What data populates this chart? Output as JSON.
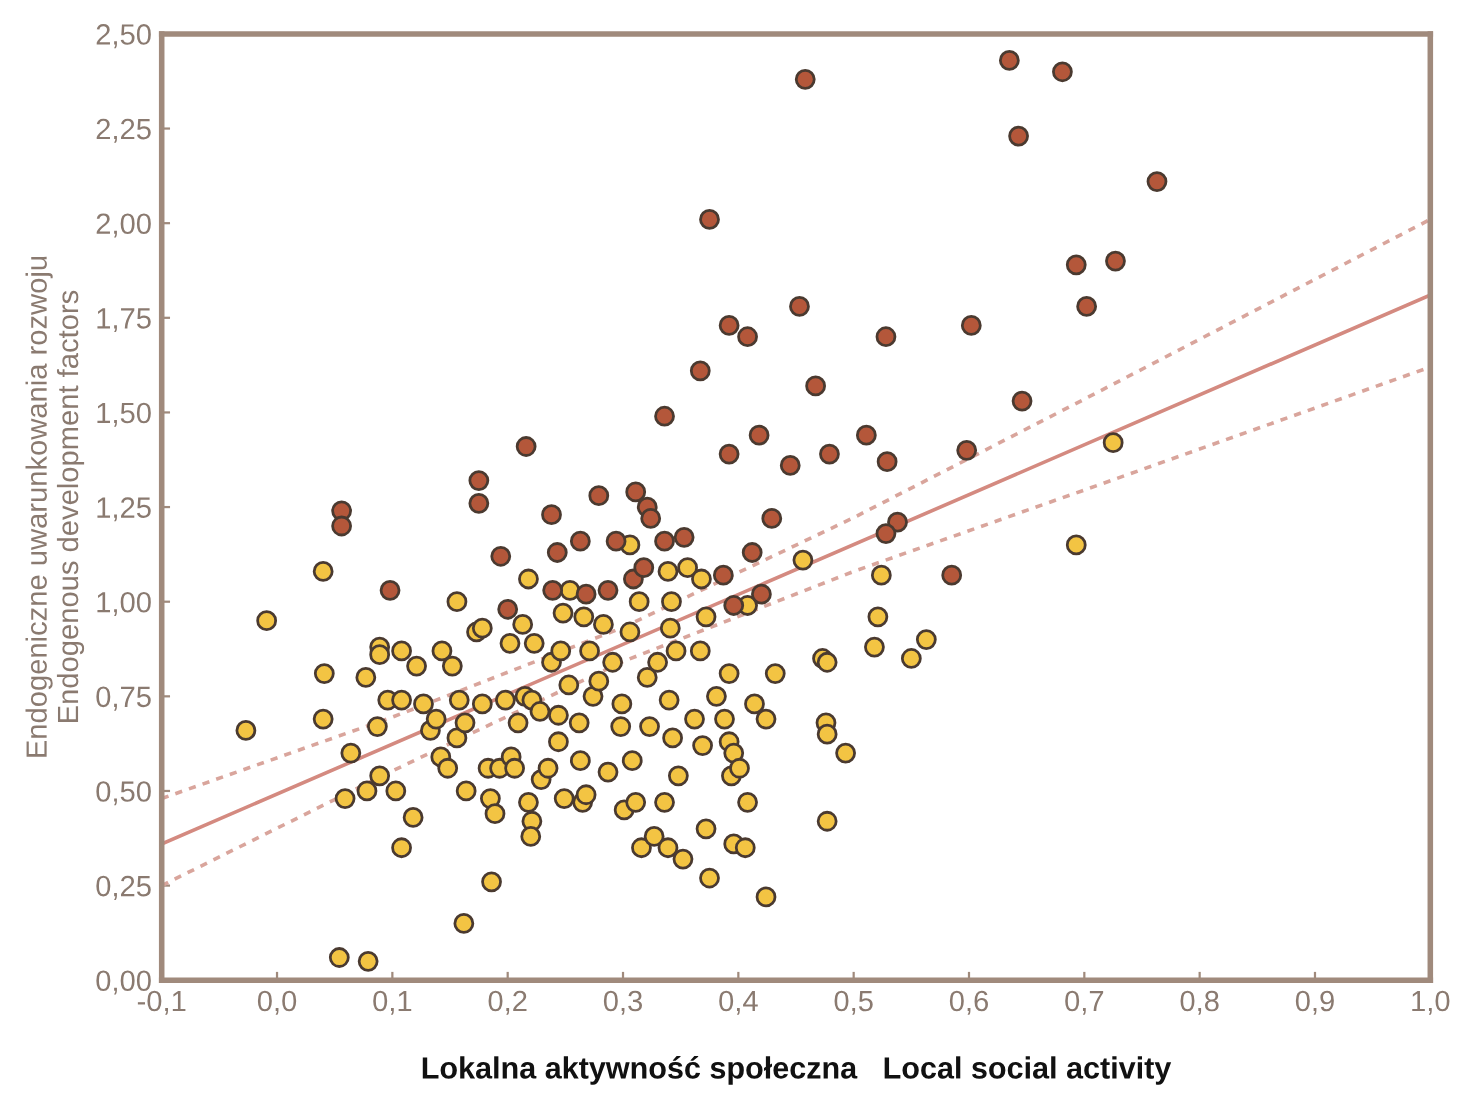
{
  "chart_data": {
    "type": "scatter",
    "xlabel": "Lokalna aktywność społeczna   Local social activity",
    "ylabel": "Endogeniczne uwarunkowania rozwoju\nEndogenous development factors",
    "xlim": [
      -0.1,
      1.0
    ],
    "xticks": [
      {
        "value": -0.1,
        "label": "-0,1"
      },
      {
        "value": 0.0,
        "label": "0,0"
      },
      {
        "value": 0.1,
        "label": "0,1"
      },
      {
        "value": 0.2,
        "label": "0,2"
      },
      {
        "value": 0.3,
        "label": "0,3"
      },
      {
        "value": 0.4,
        "label": "0,4"
      },
      {
        "value": 0.5,
        "label": "0,5"
      },
      {
        "value": 0.6,
        "label": "0,6"
      },
      {
        "value": 0.7,
        "label": "0,7"
      },
      {
        "value": 0.8,
        "label": "0,8"
      },
      {
        "value": 0.9,
        "label": "0,9"
      },
      {
        "value": 1.0,
        "label": "1,0"
      }
    ],
    "ylim": [
      0,
      2.5
    ],
    "yticks": [
      {
        "value": 0,
        "label": "0,00"
      },
      {
        "value": 0.25,
        "label": "0,25"
      },
      {
        "value": 0.5,
        "label": "0,50"
      },
      {
        "value": 0.75,
        "label": "0,75"
      },
      {
        "value": 1.0,
        "label": "1,00"
      },
      {
        "value": 1.25,
        "label": "1,25"
      },
      {
        "value": 1.5,
        "label": "1,50"
      },
      {
        "value": 1.75,
        "label": "1,75"
      },
      {
        "value": 2.0,
        "label": "2,00"
      },
      {
        "value": 2.25,
        "label": "2,25"
      },
      {
        "value": 2.5,
        "label": "2,50"
      }
    ],
    "grid": false,
    "marker": "circle",
    "series": [
      {
        "type": "line",
        "color": "#d9a59c",
        "line_style": "dotted",
        "marker": "none",
        "x": [
          -0.1,
          0.1,
          0.3,
          0.5,
          0.7,
          1.0
        ],
        "values": [
          0.48,
          0.695,
          0.932,
          1.222,
          1.535,
          2.01
        ]
      },
      {
        "type": "line",
        "color": "#d9a59c",
        "line_style": "dotted",
        "marker": "none",
        "x": [
          -0.1,
          0.1,
          0.3,
          0.5,
          0.7,
          1.0
        ],
        "values": [
          0.25,
          0.553,
          0.842,
          1.08,
          1.295,
          1.62
        ]
      },
      {
        "type": "line",
        "color": "#d48a80",
        "line_style": "solid",
        "marker": "none",
        "x": [
          -0.1,
          1.0
        ],
        "values": [
          0.36,
          1.81
        ]
      },
      {
        "type": "scatter",
        "color": "#f3c443",
        "x": [
          -0.027,
          -0.009,
          0.04,
          0.041,
          0.04,
          0.064,
          0.059,
          0.054,
          0.079,
          0.077,
          0.089,
          0.089,
          0.087,
          0.078,
          0.089,
          0.103,
          0.108,
          0.096,
          0.108,
          0.118,
          0.108,
          0.121,
          0.127,
          0.143,
          0.133,
          0.138,
          0.152,
          0.142,
          0.148,
          0.156,
          0.158,
          0.156,
          0.163,
          0.164,
          0.162,
          0.173,
          0.178,
          0.178,
          0.183,
          0.186,
          0.185,
          0.189,
          0.193,
          0.198,
          0.202,
          0.203,
          0.206,
          0.209,
          0.213,
          0.215,
          0.221,
          0.221,
          0.22,
          0.218,
          0.218,
          0.223,
          0.228,
          0.229,
          0.235,
          0.238,
          0.244,
          0.244,
          0.246,
          0.248,
          0.254,
          0.249,
          0.253,
          0.262,
          0.263,
          0.265,
          0.268,
          0.266,
          0.271,
          0.274,
          0.279,
          0.283,
          0.287,
          0.291,
          0.298,
          0.299,
          0.301,
          0.306,
          0.306,
          0.308,
          0.311,
          0.314,
          0.316,
          0.321,
          0.323,
          0.327,
          0.33,
          0.336,
          0.339,
          0.341,
          0.34,
          0.342,
          0.339,
          0.343,
          0.346,
          0.348,
          0.352,
          0.356,
          0.362,
          0.367,
          0.368,
          0.369,
          0.372,
          0.372,
          0.375,
          0.381,
          0.388,
          0.392,
          0.392,
          0.394,
          0.396,
          0.396,
          0.401,
          0.406,
          0.408,
          0.408,
          0.414,
          0.424,
          0.432,
          0.424,
          0.456,
          0.473,
          0.477,
          0.476,
          0.477,
          0.477,
          0.493,
          0.518,
          0.521,
          0.524,
          0.55,
          0.563,
          0.693,
          0.725
        ],
        "values": [
          0.66,
          0.95,
          1.08,
          0.81,
          0.69,
          0.6,
          0.48,
          0.06,
          0.05,
          0.8,
          0.88,
          0.86,
          0.67,
          0.5,
          0.54,
          0.5,
          0.35,
          0.74,
          0.74,
          0.43,
          0.87,
          0.83,
          0.73,
          0.87,
          0.66,
          0.69,
          0.83,
          0.59,
          0.56,
          1.0,
          0.74,
          0.64,
          0.68,
          0.5,
          0.15,
          0.92,
          0.93,
          0.73,
          0.56,
          0.26,
          0.48,
          0.44,
          0.56,
          0.74,
          0.89,
          0.59,
          0.56,
          0.68,
          0.94,
          0.75,
          0.74,
          0.42,
          0.38,
          0.47,
          1.06,
          0.89,
          0.71,
          0.53,
          0.56,
          0.84,
          0.63,
          0.7,
          0.87,
          0.97,
          1.03,
          0.48,
          0.78,
          0.68,
          0.58,
          0.47,
          0.49,
          0.96,
          0.87,
          0.75,
          0.79,
          0.94,
          0.55,
          0.84,
          0.67,
          0.73,
          0.45,
          0.92,
          1.15,
          0.58,
          0.47,
          1.0,
          0.35,
          0.8,
          0.67,
          0.38,
          0.84,
          0.47,
          1.08,
          0.93,
          0.74,
          1.0,
          0.35,
          0.64,
          0.87,
          0.54,
          0.32,
          1.09,
          0.69,
          0.87,
          1.06,
          0.62,
          0.96,
          0.4,
          0.27,
          0.75,
          0.69,
          0.81,
          0.63,
          0.54,
          0.36,
          0.6,
          0.56,
          0.35,
          0.99,
          0.47,
          0.73,
          0.69,
          0.81,
          0.22,
          1.11,
          0.85,
          0.84,
          0.68,
          0.65,
          0.42,
          0.6,
          0.88,
          0.96,
          1.07,
          0.85,
          0.9,
          1.15,
          1.42
        ]
      },
      {
        "type": "scatter",
        "color": "#b4573a",
        "x": [
          0.635,
          0.681,
          0.643,
          0.458,
          0.763,
          0.375,
          0.693,
          0.727,
          0.702,
          0.453,
          0.392,
          0.408,
          0.528,
          0.602,
          0.367,
          0.467,
          0.646,
          0.336,
          0.511,
          0.418,
          0.392,
          0.445,
          0.479,
          0.529,
          0.598,
          0.216,
          0.175,
          0.175,
          0.279,
          0.311,
          0.321,
          0.324,
          0.238,
          0.429,
          0.538,
          0.528,
          0.056,
          0.056,
          0.098,
          0.194,
          0.243,
          0.263,
          0.294,
          0.336,
          0.353,
          0.309,
          0.318,
          0.387,
          0.412,
          0.585,
          0.2,
          0.239,
          0.268,
          0.287,
          0.42,
          0.396
        ],
        "values": [
          2.43,
          2.4,
          2.23,
          2.38,
          2.11,
          2.01,
          1.89,
          1.9,
          1.78,
          1.78,
          1.73,
          1.7,
          1.7,
          1.73,
          1.61,
          1.57,
          1.53,
          1.49,
          1.44,
          1.44,
          1.39,
          1.36,
          1.39,
          1.37,
          1.4,
          1.41,
          1.32,
          1.26,
          1.28,
          1.29,
          1.25,
          1.22,
          1.23,
          1.22,
          1.21,
          1.18,
          1.24,
          1.2,
          1.03,
          1.12,
          1.13,
          1.16,
          1.16,
          1.16,
          1.17,
          1.06,
          1.09,
          1.07,
          1.13,
          1.07,
          0.98,
          1.03,
          1.02,
          1.03,
          1.02,
          0.99
        ]
      }
    ]
  }
}
